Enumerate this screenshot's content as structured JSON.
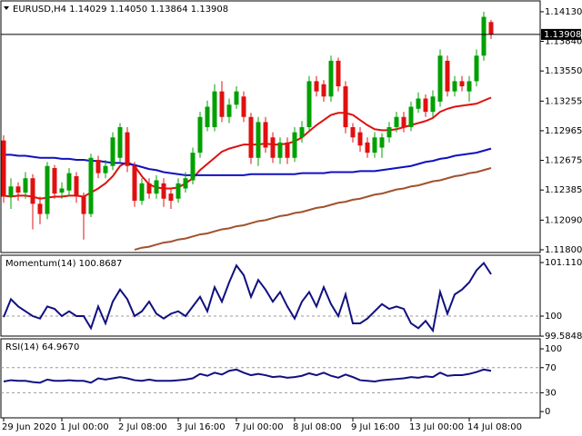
{
  "chart_data": [
    {
      "type": "candlestick",
      "title": "EURUSD,H4  1.14029 1.14050 1.13864 1.13908",
      "categories": [
        "29 Jun 2020",
        null,
        null,
        null,
        null,
        null,
        null,
        null,
        "1 Jul 00:00",
        null,
        null,
        null,
        null,
        null,
        null,
        null,
        "2 Jul 08:00",
        null,
        null,
        null,
        null,
        null,
        null,
        null,
        "3 Jul 16:00",
        null,
        null,
        null,
        null,
        null,
        null,
        null,
        "7 Jul 00:00",
        null,
        null,
        null,
        null,
        null,
        null,
        null,
        "8 Jul 08:00",
        null,
        null,
        null,
        null,
        null,
        null,
        null,
        "9 Jul 16:00",
        null,
        null,
        null,
        null,
        null,
        null,
        null,
        "13 Jul 00:00",
        null,
        null,
        null,
        null,
        null,
        null,
        null,
        "14 Jul 08:00",
        null,
        null,
        null
      ],
      "open": [
        1.1287,
        1.1232,
        1.1242,
        1.1236,
        1.125,
        1.1225,
        1.1215,
        1.126,
        1.1236,
        1.1238,
        1.1252,
        1.1232,
        1.1215,
        1.1268,
        1.1255,
        1.1262,
        1.127,
        1.1295,
        1.1262,
        1.1228,
        1.1245,
        1.1235,
        1.1245,
        1.1235,
        1.123,
        1.124,
        1.1248,
        1.1275,
        1.13,
        1.13,
        1.1335,
        1.131,
        1.1322,
        1.133,
        1.131,
        1.127,
        1.1305,
        1.129,
        1.127,
        1.1285,
        1.127,
        1.129,
        1.13,
        1.1345,
        1.1342,
        1.133,
        1.1365,
        1.134,
        1.13,
        1.1295,
        1.1285,
        1.1275,
        1.128,
        1.129,
        1.13,
        1.131,
        1.13,
        1.1318,
        1.1328,
        1.1315,
        1.1325,
        1.1365,
        1.1335,
        1.1345,
        1.1335,
        1.1345,
        1.137,
        1.14029
      ],
      "high": [
        1.1292,
        1.125,
        1.1246,
        1.1256,
        1.1254,
        1.1232,
        1.1266,
        1.1263,
        1.1246,
        1.126,
        1.1256,
        1.1236,
        1.1274,
        1.1272,
        1.1268,
        1.1295,
        1.1304,
        1.13,
        1.1266,
        1.125,
        1.125,
        1.1253,
        1.125,
        1.124,
        1.125,
        1.1256,
        1.128,
        1.1315,
        1.1326,
        1.1342,
        1.1345,
        1.1328,
        1.134,
        1.1335,
        1.1314,
        1.131,
        1.131,
        1.1295,
        1.129,
        1.129,
        1.13,
        1.1306,
        1.135,
        1.135,
        1.1346,
        1.137,
        1.1368,
        1.1345,
        1.1304,
        1.13,
        1.129,
        1.1295,
        1.1294,
        1.1305,
        1.1315,
        1.1315,
        1.1325,
        1.1334,
        1.1332,
        1.1336,
        1.1376,
        1.137,
        1.135,
        1.135,
        1.135,
        1.1376,
        1.1413,
        1.1405
      ],
      "low": [
        1.1226,
        1.122,
        1.1228,
        1.123,
        1.12,
        1.1205,
        1.121,
        1.123,
        1.123,
        1.1232,
        1.1226,
        1.119,
        1.1212,
        1.125,
        1.125,
        1.1258,
        1.1266,
        1.1256,
        1.1222,
        1.1224,
        1.123,
        1.123,
        1.1222,
        1.122,
        1.1226,
        1.1236,
        1.1244,
        1.127,
        1.1296,
        1.1296,
        1.1305,
        1.1304,
        1.1318,
        1.1305,
        1.1264,
        1.1262,
        1.1275,
        1.1265,
        1.1264,
        1.1264,
        1.1266,
        1.1285,
        1.1296,
        1.133,
        1.1325,
        1.1325,
        1.1335,
        1.1294,
        1.1285,
        1.1276,
        1.127,
        1.127,
        1.127,
        1.1285,
        1.1295,
        1.1295,
        1.1296,
        1.1314,
        1.131,
        1.131,
        1.132,
        1.133,
        1.133,
        1.1335,
        1.1325,
        1.134,
        1.1365,
        1.13864
      ],
      "close": [
        1.1232,
        1.1242,
        1.1236,
        1.125,
        1.1225,
        1.1215,
        1.1262,
        1.1235,
        1.124,
        1.1255,
        1.1232,
        1.1215,
        1.127,
        1.1255,
        1.1262,
        1.129,
        1.13,
        1.1262,
        1.1228,
        1.1245,
        1.1235,
        1.1248,
        1.123,
        1.1228,
        1.1245,
        1.125,
        1.1275,
        1.131,
        1.132,
        1.1335,
        1.131,
        1.1322,
        1.1335,
        1.131,
        1.127,
        1.1305,
        1.128,
        1.127,
        1.1285,
        1.127,
        1.1295,
        1.13,
        1.1345,
        1.1335,
        1.133,
        1.1365,
        1.134,
        1.13,
        1.129,
        1.1282,
        1.1275,
        1.129,
        1.129,
        1.13,
        1.131,
        1.13,
        1.132,
        1.1328,
        1.1315,
        1.133,
        1.137,
        1.1335,
        1.1345,
        1.134,
        1.1345,
        1.137,
        1.1408,
        1.13908
      ],
      "up_color": "#00a000",
      "down_color": "#e01010",
      "last_price": 1.13908,
      "series": [
        {
          "color": "#e01010",
          "values": [
            1.1233,
            1.1232,
            1.1233,
            1.1233,
            1.1232,
            1.123,
            1.1231,
            1.1232,
            1.1232,
            1.1233,
            1.1233,
            1.1232,
            1.1236,
            1.124,
            1.1245,
            1.1252,
            1.1262,
            1.1266,
            1.1262,
            1.1252,
            1.1244,
            1.1241,
            1.124,
            1.124,
            1.1241,
            1.1245,
            1.125,
            1.1258,
            1.1264,
            1.127,
            1.1276,
            1.1279,
            1.1281,
            1.1283,
            1.1283,
            1.1283,
            1.1284,
            1.1283,
            1.1283,
            1.1284,
            1.1286,
            1.129,
            1.1296,
            1.1302,
            1.1307,
            1.1312,
            1.1314,
            1.1314,
            1.1312,
            1.1307,
            1.1302,
            1.1298,
            1.1297,
            1.1297,
            1.1298,
            1.13,
            1.1302,
            1.1304,
            1.1306,
            1.1309,
            1.1315,
            1.1318,
            1.132,
            1.1321,
            1.1322,
            1.1323,
            1.1326,
            1.1329
          ]
        },
        {
          "color": "#1010c0",
          "values": [
            1.1273,
            1.1273,
            1.1272,
            1.1272,
            1.1271,
            1.127,
            1.127,
            1.127,
            1.1269,
            1.1269,
            1.1268,
            1.1268,
            1.1267,
            1.1267,
            1.1266,
            1.1265,
            1.1265,
            1.1264,
            1.1263,
            1.1261,
            1.1259,
            1.1258,
            1.1256,
            1.1255,
            1.1254,
            1.1253,
            1.1253,
            1.1253,
            1.1253,
            1.1253,
            1.1253,
            1.1253,
            1.1253,
            1.1253,
            1.1254,
            1.1254,
            1.1254,
            1.1254,
            1.1254,
            1.1254,
            1.1254,
            1.1255,
            1.1255,
            1.1255,
            1.1255,
            1.1256,
            1.1256,
            1.1256,
            1.1256,
            1.1257,
            1.1257,
            1.1257,
            1.1258,
            1.1259,
            1.126,
            1.1261,
            1.1262,
            1.1264,
            1.1266,
            1.1267,
            1.1269,
            1.127,
            1.1272,
            1.1273,
            1.1274,
            1.1275,
            1.1277,
            1.1279
          ]
        },
        {
          "color": "#a0522d",
          "values": [
            null,
            null,
            null,
            null,
            null,
            null,
            null,
            null,
            null,
            null,
            null,
            null,
            null,
            null,
            null,
            null,
            null,
            null,
            1.118,
            1.1182,
            1.1183,
            1.1185,
            1.1187,
            1.1188,
            1.119,
            1.1191,
            1.1193,
            1.1195,
            1.1196,
            1.1198,
            1.12,
            1.1201,
            1.1203,
            1.1204,
            1.1206,
            1.1208,
            1.1209,
            1.1211,
            1.1213,
            1.1214,
            1.1216,
            1.1217,
            1.1219,
            1.1221,
            1.1222,
            1.1224,
            1.1226,
            1.1227,
            1.1229,
            1.123,
            1.1232,
            1.1234,
            1.1235,
            1.1237,
            1.1239,
            1.124,
            1.1242,
            1.1243,
            1.1245,
            1.1247,
            1.1248,
            1.125,
            1.1252,
            1.1253,
            1.1255,
            1.1256,
            1.1258,
            1.126
          ]
        }
      ],
      "ylim": [
        1.11773,
        1.14236
      ],
      "yticks": [
        {
          "value": 1.1413,
          "label": "1.14130"
        },
        {
          "value": 1.1384,
          "label": "1.13840"
        },
        {
          "value": 1.1355,
          "label": "1.13550"
        },
        {
          "value": 1.13255,
          "label": "1.13255"
        },
        {
          "value": 1.12965,
          "label": "1.12965"
        },
        {
          "value": 1.12675,
          "label": "1.12675"
        },
        {
          "value": 1.12385,
          "label": "1.12385"
        },
        {
          "value": 1.1209,
          "label": "1.12090"
        },
        {
          "value": 1.118,
          "label": "1.11800"
        }
      ]
    },
    {
      "type": "line",
      "title": "Momentum(14) 100.8687",
      "color": "#101080",
      "values": [
        99.98,
        100.35,
        100.2,
        100.1,
        100.0,
        99.95,
        100.2,
        100.15,
        100.0,
        100.1,
        100.0,
        100.0,
        99.75,
        100.2,
        99.85,
        100.3,
        100.55,
        100.35,
        100.0,
        100.1,
        100.3,
        100.05,
        99.95,
        100.05,
        100.1,
        100.0,
        100.2,
        100.4,
        100.1,
        100.6,
        100.3,
        100.7,
        101.05,
        100.85,
        100.4,
        100.75,
        100.55,
        100.3,
        100.5,
        100.2,
        99.95,
        100.3,
        100.5,
        100.2,
        100.6,
        100.25,
        100.0,
        100.45,
        99.85,
        99.85,
        99.95,
        100.1,
        100.25,
        100.15,
        100.2,
        100.15,
        99.85,
        99.75,
        99.9,
        99.7,
        100.5,
        100.05,
        100.45,
        100.55,
        100.7,
        100.95,
        101.1,
        100.8687
      ],
      "ylim": [
        99.586,
        101.262
      ],
      "yticks": [
        101.1105,
        100,
        99.5848
      ],
      "levels": [
        100
      ]
    },
    {
      "type": "line",
      "title": "RSI(14) 64.9670",
      "color": "#101080",
      "values": [
        48,
        50,
        49,
        49,
        47,
        46,
        51,
        49,
        49,
        50,
        49,
        49,
        46,
        53,
        51,
        53,
        55,
        53,
        50,
        49,
        51,
        49,
        49,
        49,
        50,
        51,
        53,
        60,
        57,
        62,
        59,
        65,
        67,
        62,
        58,
        60,
        58,
        55,
        56,
        54,
        55,
        57,
        61,
        58,
        62,
        57,
        54,
        59,
        55,
        50,
        49,
        48,
        50,
        51,
        52,
        53,
        55,
        54,
        56,
        55,
        62,
        57,
        58,
        58,
        60,
        63,
        67,
        64.967
      ],
      "ylim": [
        -10,
        116
      ],
      "yticks": [
        100,
        70,
        30,
        0
      ],
      "levels": [
        70,
        30
      ]
    }
  ]
}
